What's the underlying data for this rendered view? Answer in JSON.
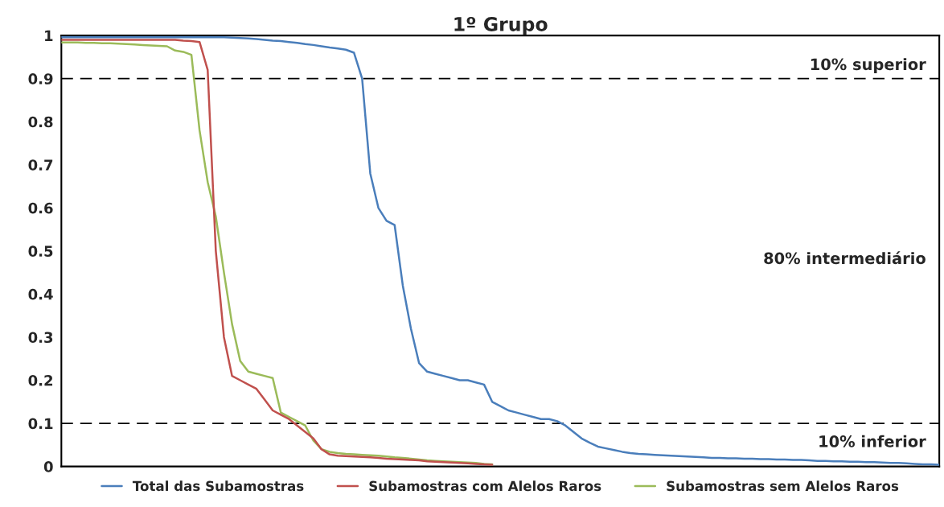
{
  "chart_data": {
    "type": "line",
    "title": "1º Grupo",
    "categories": [
      null,
      null,
      null,
      null,
      null,
      null,
      null,
      null,
      null,
      null,
      null,
      null,
      null,
      null,
      null,
      null,
      null,
      null,
      null,
      null,
      null,
      null,
      null,
      null,
      null,
      null,
      null,
      null,
      null,
      null,
      null,
      null,
      null,
      null,
      null,
      null,
      null,
      null,
      null,
      null,
      null,
      null,
      null,
      null,
      null,
      null,
      null,
      null,
      null,
      null,
      null,
      null,
      null,
      null,
      null,
      null,
      null,
      null,
      null,
      null,
      null,
      null,
      null,
      null,
      null,
      null,
      null,
      null,
      null,
      null,
      null,
      null,
      null,
      null,
      null,
      null,
      null,
      null,
      null,
      null,
      null,
      null,
      null,
      null,
      null,
      null,
      null,
      null,
      null,
      null,
      null,
      null,
      null,
      null,
      null,
      null,
      null,
      null,
      null,
      null,
      null,
      null,
      null,
      null,
      null,
      null,
      null,
      null,
      null
    ],
    "series": [
      {
        "name": "Total das Subamostras",
        "color": "#4a7ebb",
        "values": [
          0.996,
          0.996,
          0.996,
          0.996,
          0.996,
          0.996,
          0.996,
          0.996,
          0.996,
          0.996,
          0.996,
          0.996,
          0.996,
          0.996,
          0.996,
          0.996,
          0.996,
          0.996,
          0.996,
          0.996,
          0.996,
          0.995,
          0.994,
          0.993,
          0.992,
          0.99,
          0.988,
          0.987,
          0.985,
          0.983,
          0.98,
          0.978,
          0.975,
          0.972,
          0.97,
          0.967,
          0.96,
          0.9,
          0.68,
          0.6,
          0.57,
          0.56,
          0.42,
          0.32,
          0.24,
          0.22,
          0.215,
          0.21,
          0.205,
          0.2,
          0.2,
          0.195,
          0.19,
          0.15,
          0.14,
          0.13,
          0.125,
          0.12,
          0.115,
          0.11,
          0.11,
          0.105,
          0.095,
          0.08,
          0.065,
          0.055,
          0.046,
          0.042,
          0.038,
          0.034,
          0.031,
          0.029,
          0.028,
          0.027,
          0.026,
          0.025,
          0.024,
          0.023,
          0.022,
          0.021,
          0.02,
          0.02,
          0.019,
          0.019,
          0.018,
          0.018,
          0.017,
          0.017,
          0.016,
          0.016,
          0.015,
          0.015,
          0.014,
          0.013,
          0.013,
          0.012,
          0.012,
          0.011,
          0.011,
          0.01,
          0.01,
          0.009,
          0.008,
          0.008,
          0.007,
          0.006,
          0.005,
          0.005,
          0.004
        ]
      },
      {
        "name": "Subamostras com Alelos Raros",
        "color": "#c0504d",
        "values": [
          0.99,
          0.99,
          0.99,
          0.99,
          0.99,
          0.99,
          0.99,
          0.99,
          0.99,
          0.99,
          0.99,
          0.99,
          0.99,
          0.99,
          0.99,
          0.988,
          0.987,
          0.985,
          0.92,
          0.5,
          0.3,
          0.21,
          0.2,
          0.19,
          0.18,
          0.155,
          0.13,
          0.12,
          0.11,
          0.095,
          0.08,
          0.065,
          0.04,
          0.028,
          0.025,
          0.024,
          0.023,
          0.022,
          0.021,
          0.02,
          0.018,
          0.017,
          0.016,
          0.015,
          0.014,
          0.012,
          0.011,
          0.01,
          0.009,
          0.008,
          0.007,
          0.006,
          0.005,
          0.004,
          null,
          null,
          null,
          null,
          null,
          null,
          null,
          null,
          null,
          null,
          null,
          null,
          null,
          null,
          null,
          null,
          null,
          null,
          null,
          null,
          null,
          null,
          null,
          null,
          null,
          null,
          null,
          null,
          null,
          null,
          null,
          null,
          null,
          null,
          null,
          null,
          null,
          null,
          null,
          null,
          null,
          null,
          null,
          null,
          null,
          null,
          null,
          null,
          null,
          null,
          null,
          null,
          null,
          null,
          null
        ]
      },
      {
        "name": "Subamostras sem Alelos Raros",
        "color": "#9bbb59",
        "values": [
          0.984,
          0.984,
          0.984,
          0.983,
          0.983,
          0.982,
          0.982,
          0.981,
          0.98,
          0.979,
          0.978,
          0.977,
          0.976,
          0.975,
          0.965,
          0.962,
          0.955,
          0.78,
          0.66,
          0.58,
          0.45,
          0.33,
          0.245,
          0.22,
          0.215,
          0.21,
          0.205,
          0.125,
          0.115,
          0.105,
          0.095,
          0.06,
          0.04,
          0.034,
          0.031,
          0.029,
          0.028,
          0.027,
          0.026,
          0.025,
          0.023,
          0.021,
          0.02,
          0.018,
          0.016,
          0.014,
          0.013,
          0.012,
          0.011,
          0.01,
          0.009,
          0.008,
          0.006,
          0.005,
          null,
          null,
          null,
          null,
          null,
          null,
          null,
          null,
          null,
          null,
          null,
          null,
          null,
          null,
          null,
          null,
          null,
          null,
          null,
          null,
          null,
          null,
          null,
          null,
          null,
          null,
          null,
          null,
          null,
          null,
          null,
          null,
          null,
          null,
          null,
          null,
          null,
          null,
          null,
          null,
          null,
          null,
          null,
          null,
          null,
          null,
          null,
          null,
          null,
          null,
          null,
          null,
          null,
          null,
          null
        ]
      }
    ],
    "ylim": [
      0,
      1
    ],
    "yticks": [
      0,
      0.1,
      0.2,
      0.3,
      0.4,
      0.5,
      0.6,
      0.7,
      0.8,
      0.9,
      1
    ],
    "ref_lines": [
      {
        "axis": "y",
        "value": 0.9,
        "color": "#000000",
        "line_style": "dashed"
      },
      {
        "axis": "y",
        "value": 0.1,
        "color": "#000000",
        "line_style": "dashed"
      }
    ],
    "annotations": [
      "10% superior",
      "80% intermediário",
      "10% inferior"
    ],
    "grid": false,
    "legend": "bottom",
    "marker": "none",
    "line_style": "solid"
  }
}
